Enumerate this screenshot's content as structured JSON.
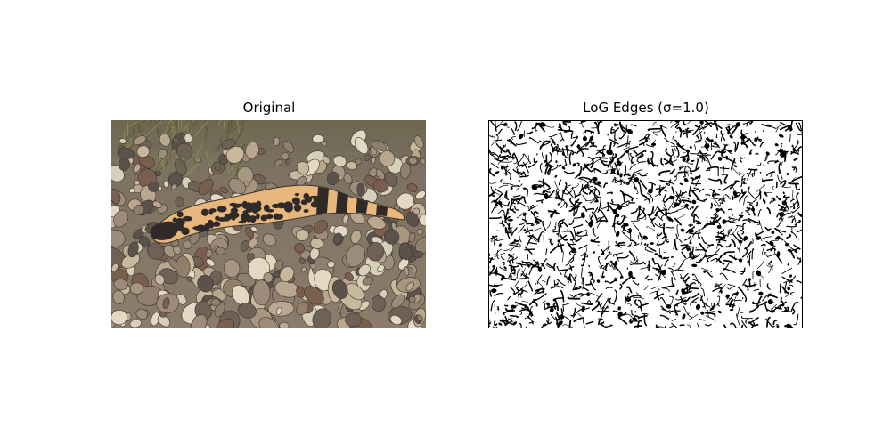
{
  "figure": {
    "left_title": "Original",
    "right_title": "LoG Edges (σ=1.0)"
  },
  "colors": {
    "background": "#ffffff",
    "lizard_pattern": "#e7b77d",
    "lizard_dark": "#2f2a27",
    "gravel_base": "#8a7f73",
    "grass": "#6f6a3d",
    "edge_black": "#000000"
  }
}
